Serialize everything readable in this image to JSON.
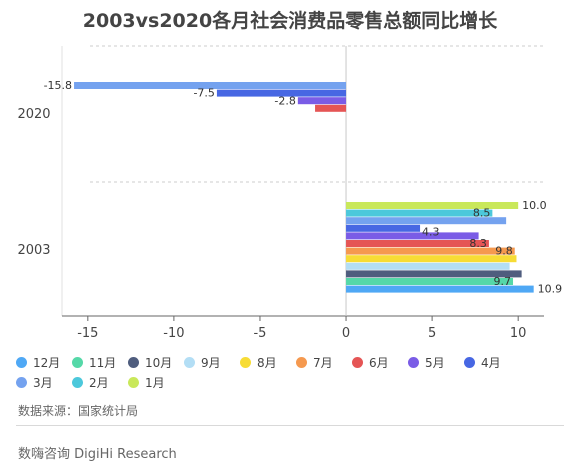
{
  "chart_data": {
    "type": "bar",
    "orientation": "horizontal",
    "title": "2003vs2020各月社会消费品零售总额同比增长",
    "categories": [
      "2020",
      "2003"
    ],
    "xlim": [
      -16.5,
      11.5
    ],
    "xticks": [
      -15,
      -10,
      -5,
      0,
      5,
      10
    ],
    "xtick_labels": [
      "-15",
      "-10",
      "-5",
      "0",
      "5",
      "10"
    ],
    "grid": false,
    "legend_position": "bottom",
    "series": [
      {
        "name": "12月",
        "color": "#4fa8f5",
        "values": [
          null,
          10.9
        ],
        "labels": [
          null,
          "10.9"
        ]
      },
      {
        "name": "11月",
        "color": "#55d8a8",
        "values": [
          null,
          9.7
        ],
        "labels": [
          null,
          "9.7"
        ]
      },
      {
        "name": "10月",
        "color": "#4f5d7e",
        "values": [
          null,
          10.2
        ],
        "labels": [
          null,
          null
        ]
      },
      {
        "name": "9月",
        "color": "#b3def5",
        "values": [
          null,
          9.5
        ],
        "labels": [
          null,
          null
        ]
      },
      {
        "name": "8月",
        "color": "#f7dc35",
        "values": [
          null,
          9.9
        ],
        "labels": [
          null,
          null
        ]
      },
      {
        "name": "7月",
        "color": "#f5994f",
        "values": [
          null,
          9.8
        ],
        "labels": [
          null,
          "9.8"
        ]
      },
      {
        "name": "6月",
        "color": "#e55555",
        "values": [
          -1.8,
          8.3
        ],
        "labels": [
          null,
          "8.3"
        ]
      },
      {
        "name": "5月",
        "color": "#7a5ce6",
        "values": [
          -2.8,
          7.7
        ],
        "labels": [
          "-2.8",
          null
        ]
      },
      {
        "name": "4月",
        "color": "#4767e3",
        "values": [
          -7.5,
          4.3
        ],
        "labels": [
          "-7.5",
          "4.3"
        ]
      },
      {
        "name": "3月",
        "color": "#74a2ef",
        "values": [
          -15.8,
          9.3
        ],
        "labels": [
          "-15.8",
          null
        ]
      },
      {
        "name": "2月",
        "color": "#4cc8db",
        "values": [
          null,
          8.5
        ],
        "labels": [
          null,
          "8.5"
        ]
      },
      {
        "name": "1月",
        "color": "#c9e85a",
        "values": [
          null,
          10.0
        ],
        "labels": [
          null,
          "10.0"
        ]
      }
    ]
  },
  "source": "数据来源：国家统计局",
  "footer": "数嗨咨询 DigiHi Research"
}
